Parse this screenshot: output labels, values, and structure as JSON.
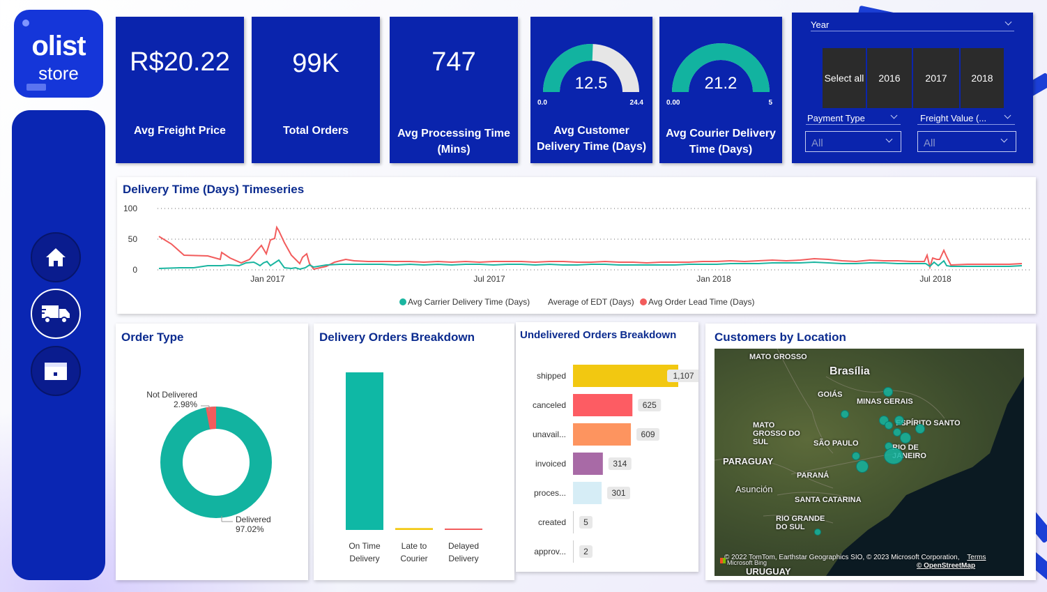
{
  "logo": {
    "line1": "olist",
    "line2": "store"
  },
  "nav": {
    "items": [
      {
        "name": "home"
      },
      {
        "name": "delivery"
      },
      {
        "name": "orders"
      }
    ]
  },
  "kpis": {
    "avg_freight_price": {
      "value": "R$20.22",
      "label": "Avg Freight Price"
    },
    "total_orders": {
      "value": "99K",
      "label": "Total Orders"
    },
    "avg_processing_time": {
      "value": "747",
      "label_line1": "Avg Processing Time",
      "label_line2": "(Mins)"
    },
    "avg_customer_delivery": {
      "value": "12.5",
      "min": "0.0",
      "max": "24.4",
      "fill_fraction": 0.512,
      "label_line1": "Avg Customer",
      "label_line2": "Delivery Time (Days)"
    },
    "avg_courier_delivery": {
      "value": "21.2",
      "min": "0.00",
      "max": "5",
      "fill_fraction": 1.0,
      "label_line1": "Avg Courier Delivery",
      "label_line2": "Time (Days)"
    }
  },
  "slicers": {
    "year": {
      "title": "Year",
      "options": [
        "Select all",
        "2016",
        "2017",
        "2018"
      ]
    },
    "payment_type": {
      "title": "Payment Type",
      "value": "All"
    },
    "freight_value": {
      "title": "Freight Value (...",
      "value": "All"
    }
  },
  "timeseries": {
    "title": "Delivery Time (Days) Timeseries",
    "y_ticks": [
      "100",
      "50",
      "0"
    ],
    "x_ticks": [
      "Jan 2017",
      "Jul 2017",
      "Jan 2018",
      "Jul 2018"
    ],
    "legend": [
      "Avg Carrier Delivery Time (Days)",
      "Average of EDT (Days)",
      "Avg Order Lead Time (Days)"
    ],
    "colors": {
      "carrier": "#1ab5a0",
      "lead": "#f25c5c"
    }
  },
  "order_type": {
    "title": "Order Type",
    "not_delivered_label": "Not Delivered",
    "not_delivered_pct": "2.98%",
    "delivered_label": "Delivered",
    "delivered_pct": "97.02%"
  },
  "delivery_breakdown": {
    "title": "Delivery Orders Breakdown",
    "bars": [
      {
        "line1": "On Time",
        "line2": "Delivery",
        "value_fraction": 1.0,
        "color": "#0fb8a5"
      },
      {
        "line1": "Late to",
        "line2": "Courier",
        "value_fraction": 0.012,
        "color": "#f2c811"
      },
      {
        "line1": "Delayed",
        "line2": "Delivery",
        "value_fraction": 0.006,
        "color": "#f25c5c"
      }
    ]
  },
  "undelivered": {
    "title": "Undelivered Orders Breakdown",
    "rows": [
      {
        "label": "shipped",
        "value": "1,107",
        "num": 1107,
        "color": "#f2c811"
      },
      {
        "label": "canceled",
        "value": "625",
        "num": 625,
        "color": "#fd5c63"
      },
      {
        "label": "unavail...",
        "value": "609",
        "num": 609,
        "color": "#fd945f"
      },
      {
        "label": "invoiced",
        "value": "314",
        "num": 314,
        "color": "#a86aa6"
      },
      {
        "label": "proces...",
        "value": "301",
        "num": 301,
        "color": "#d6edf6"
      },
      {
        "label": "created",
        "value": "5",
        "num": 5,
        "color": "#cccccc"
      },
      {
        "label": "approv...",
        "value": "2",
        "num": 2,
        "color": "#cccccc"
      }
    ]
  },
  "customers_map": {
    "title": "Customers by Location",
    "labels": [
      "MATO GROSSO",
      "Brasília",
      "GOIÁS",
      "MINAS GERAIS",
      "ESPÍRITO SANTO",
      "MATO GROSSO DO SUL",
      "SÃO PAULO",
      "RIO DE JANEIRO",
      "PARAGUAY",
      "Asunción",
      "PARANÁ",
      "SANTA CATARINA",
      "RIO GRANDE DO SUL",
      "URUGUAY"
    ],
    "copyright": "© 2022 TomTom, Earthstar Geographics SIO, © 2023 Microsoft Corporation,",
    "terms": "Terms",
    "osm": "© OpenStreetMap",
    "bing": "Microsoft Bing"
  }
}
